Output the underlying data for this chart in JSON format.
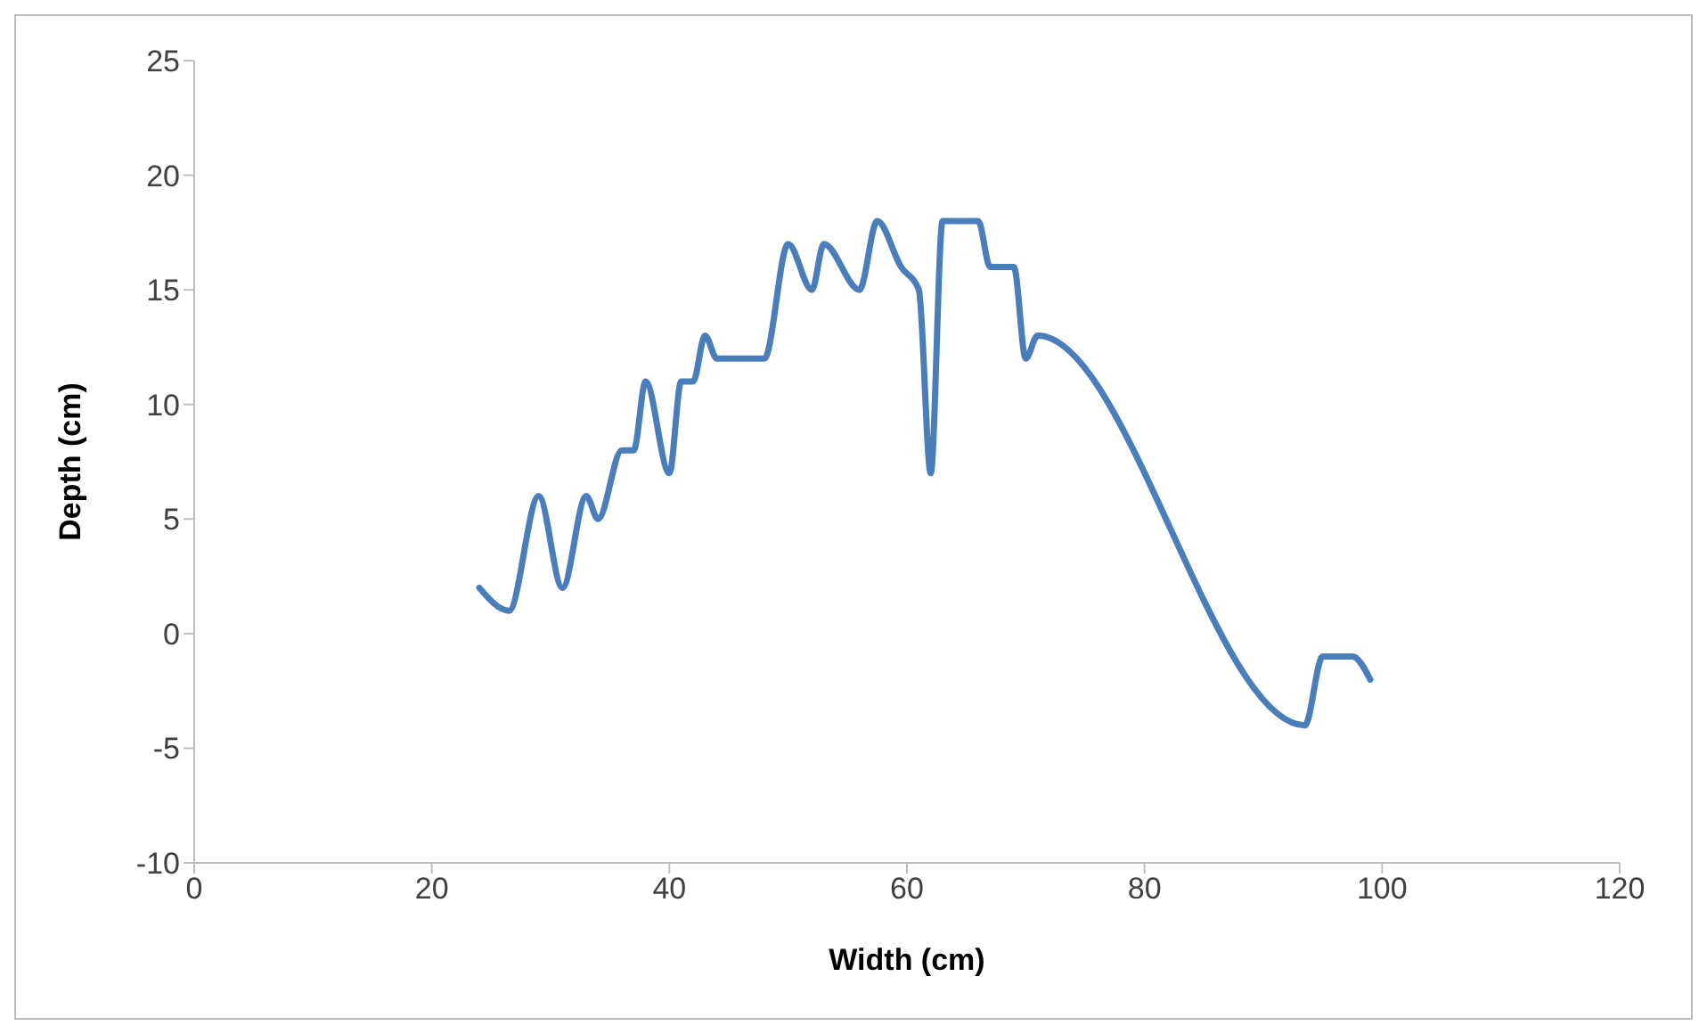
{
  "chart_data": {
    "type": "line",
    "xlabel": "Width (cm)",
    "ylabel": "Depth (cm)",
    "xlim": [
      0,
      120
    ],
    "xticks": [
      0,
      20,
      40,
      60,
      80,
      100,
      120
    ],
    "ylim": [
      -10,
      25
    ],
    "yticks": [
      -10,
      -5,
      0,
      5,
      10,
      15,
      20,
      25
    ],
    "grid": false,
    "legend": false,
    "marker": "none",
    "line_style": "solid",
    "x": [
      24,
      26.5,
      29,
      31,
      33,
      34,
      36,
      37,
      38,
      40,
      41,
      42,
      43,
      44,
      48,
      50,
      52,
      53,
      56,
      57.5,
      59.5,
      61,
      62,
      63,
      66,
      67,
      69,
      70,
      71,
      93.5,
      95,
      97.5,
      99
    ],
    "series": [
      {
        "color": "#4a7ebb",
        "values": [
          2,
          1,
          6,
          2,
          6,
          5,
          8,
          8,
          11,
          7,
          11,
          11,
          13,
          12,
          12,
          17,
          15,
          17,
          15,
          18,
          16,
          15,
          7,
          18,
          18,
          16,
          16,
          12,
          13,
          -4,
          -1,
          -1,
          -2
        ]
      }
    ]
  }
}
